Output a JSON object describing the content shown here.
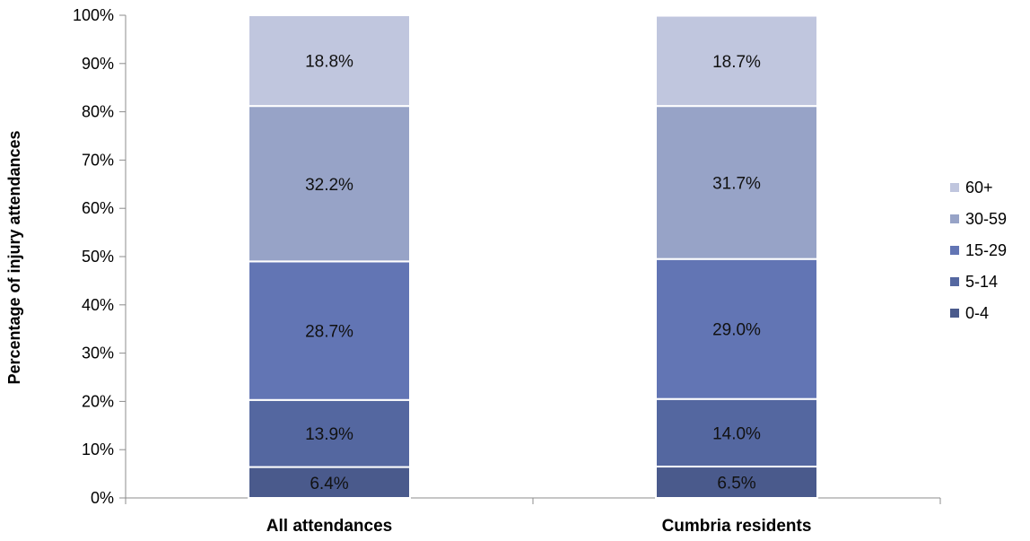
{
  "chart_data": {
    "type": "bar",
    "stacked": true,
    "categories": [
      "All attendances",
      "Cumbria residents"
    ],
    "series": [
      {
        "name": "0-4",
        "values": [
          6.4,
          6.5
        ],
        "labels": [
          "6.4%",
          "6.5%"
        ],
        "color": "#4a5a8c"
      },
      {
        "name": "5-14",
        "values": [
          13.9,
          14.0
        ],
        "labels": [
          "13.9%",
          "14.0%"
        ],
        "color": "#5467a0"
      },
      {
        "name": "15-29",
        "values": [
          28.7,
          29.0
        ],
        "labels": [
          "28.7%",
          "29.0%"
        ],
        "color": "#6275b4"
      },
      {
        "name": "30-59",
        "values": [
          32.2,
          31.7
        ],
        "labels": [
          "32.2%",
          "31.7%"
        ],
        "color": "#97a3c7"
      },
      {
        "name": "60+",
        "values": [
          18.8,
          18.7
        ],
        "labels": [
          "18.8%",
          "18.7%"
        ],
        "color": "#c0c6de"
      }
    ],
    "ylabel": "Percentage of injury attendances",
    "xlabel": "",
    "ylim": [
      0,
      100
    ],
    "yticks": [
      "0%",
      "10%",
      "20%",
      "30%",
      "40%",
      "50%",
      "60%",
      "70%",
      "80%",
      "90%",
      "100%"
    ],
    "grid": false,
    "legend_position": "right",
    "legend_order": [
      "60+",
      "30-59",
      "15-29",
      "5-14",
      "0-4"
    ]
  }
}
